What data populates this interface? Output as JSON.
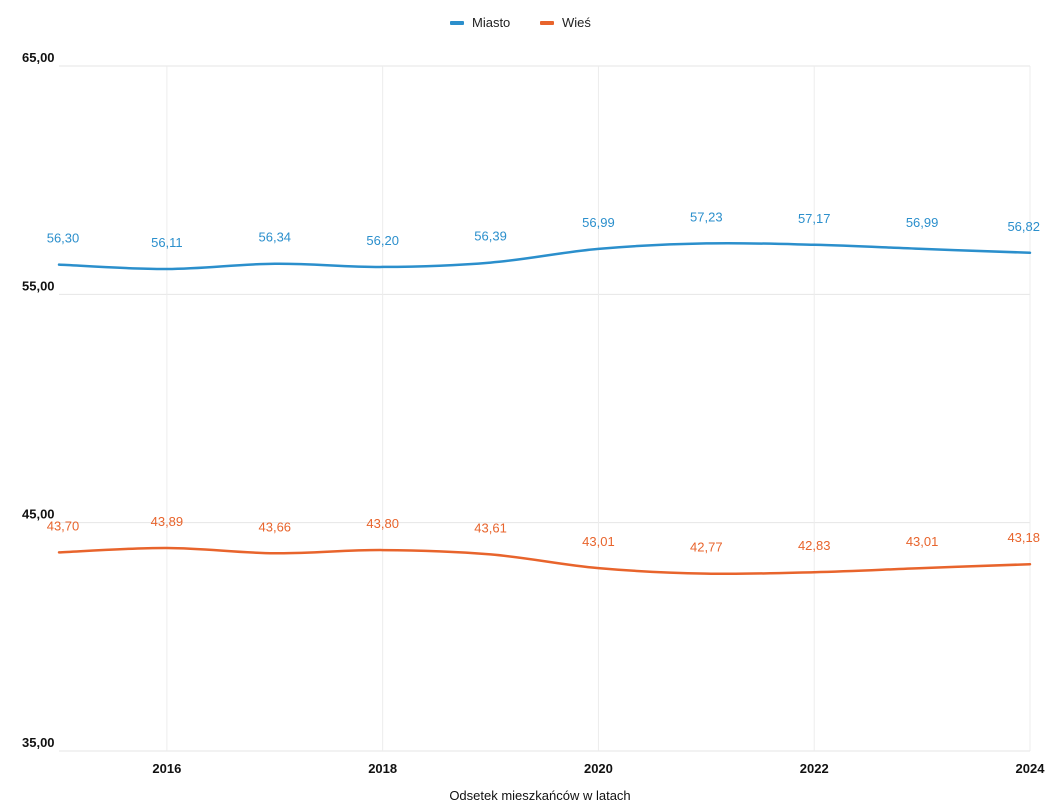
{
  "chart_data": {
    "type": "line",
    "x": [
      2015,
      2016,
      2017,
      2018,
      2019,
      2020,
      2021,
      2022,
      2023,
      2024
    ],
    "x_tick_labels": [
      "2016",
      "2018",
      "2020",
      "2022",
      "2024"
    ],
    "x_tick_values": [
      2016,
      2018,
      2020,
      2022,
      2024
    ],
    "xlabel": "Odsetek mieszkańców w latach",
    "ylabel": "",
    "title": "",
    "ylim": [
      35,
      65
    ],
    "y_tick_values": [
      35,
      45,
      55,
      65
    ],
    "y_tick_labels": [
      "35,00",
      "45,00",
      "55,00",
      "65,00"
    ],
    "grid": true,
    "legend_position": "top-center",
    "series": [
      {
        "name": "Miasto",
        "color": "#2b8fcc",
        "values": [
          56.3,
          56.11,
          56.34,
          56.2,
          56.39,
          56.99,
          57.23,
          57.17,
          56.99,
          56.82
        ],
        "labels": [
          "56,30",
          "56,11",
          "56,34",
          "56,20",
          "56,39",
          "56,99",
          "57,23",
          "57,17",
          "56,99",
          "56,82"
        ]
      },
      {
        "name": "Wieś",
        "color": "#e8642c",
        "values": [
          43.7,
          43.89,
          43.66,
          43.8,
          43.61,
          43.01,
          42.77,
          42.83,
          43.01,
          43.18
        ],
        "labels": [
          "43,70",
          "43,89",
          "43,66",
          "43,80",
          "43,61",
          "43,01",
          "42,77",
          "42,83",
          "43,01",
          "43,18"
        ]
      }
    ]
  }
}
